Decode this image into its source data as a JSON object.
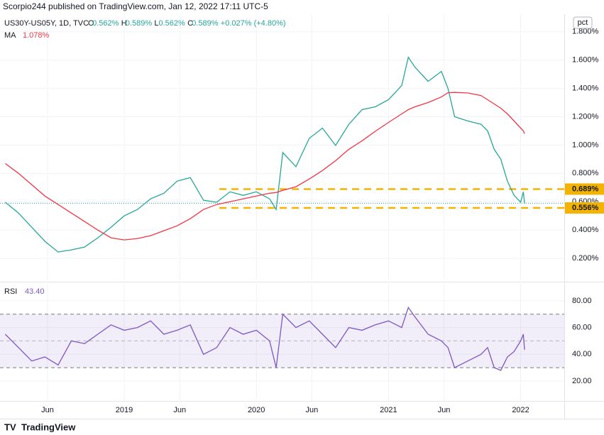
{
  "header": {
    "publisher": "Scorpio244 published on TradingView.com, Jan 12, 2022 17:11 UTC-5"
  },
  "footer": {
    "brand": "TradingView"
  },
  "chart_data": [
    {
      "type": "line",
      "symbol": "US30Y-US05Y, 1D, TVC",
      "ohlc": [
        {
          "key": "O",
          "value": "0.562%"
        },
        {
          "key": "H",
          "value": "0.589%"
        },
        {
          "key": "L",
          "value": "0.562%"
        },
        {
          "key": "C",
          "value": "0.589%"
        }
      ],
      "change": "+0.027% (+4.80%)",
      "axis_unit": "pct",
      "x": [
        2018.1,
        2018.2,
        2018.3,
        2018.4,
        2018.5,
        2018.6,
        2018.7,
        2018.8,
        2018.9,
        2019.0,
        2019.1,
        2019.2,
        2019.3,
        2019.4,
        2019.5,
        2019.6,
        2019.7,
        2019.8,
        2019.9,
        2020.0,
        2020.1,
        2020.15,
        2020.2,
        2020.3,
        2020.4,
        2020.5,
        2020.6,
        2020.7,
        2020.8,
        2020.9,
        2021.0,
        2021.1,
        2021.15,
        2021.2,
        2021.3,
        2021.4,
        2021.45,
        2021.5,
        2021.6,
        2021.7,
        2021.75,
        2021.8,
        2021.85,
        2021.9,
        2021.95,
        2022.0,
        2022.02,
        2022.03
      ],
      "series": [
        {
          "color": "#26a69a",
          "values": [
            0.596,
            0.52,
            0.42,
            0.32,
            0.245,
            0.26,
            0.28,
            0.345,
            0.42,
            0.5,
            0.545,
            0.62,
            0.66,
            0.745,
            0.77,
            0.61,
            0.596,
            0.67,
            0.645,
            0.67,
            0.62,
            0.545,
            0.947,
            0.847,
            1.047,
            1.12,
            0.997,
            1.147,
            1.25,
            1.27,
            1.32,
            1.42,
            1.62,
            1.55,
            1.45,
            1.52,
            1.4,
            1.2,
            1.17,
            1.147,
            1.1,
            0.97,
            0.9,
            0.745,
            0.645,
            0.596,
            0.67,
            0.589
          ]
        },
        {
          "name": "MA",
          "color": "#f23645",
          "value_label": "1.078%",
          "values": [
            0.87,
            0.8,
            0.72,
            0.64,
            0.58,
            0.52,
            0.46,
            0.4,
            0.345,
            0.33,
            0.34,
            0.36,
            0.395,
            0.43,
            0.48,
            0.545,
            0.58,
            0.6,
            0.62,
            0.64,
            0.66,
            0.665,
            0.68,
            0.706,
            0.76,
            0.82,
            0.89,
            0.97,
            1.03,
            1.097,
            1.16,
            1.22,
            1.25,
            1.27,
            1.3,
            1.34,
            1.37,
            1.372,
            1.368,
            1.35,
            1.32,
            1.29,
            1.26,
            1.22,
            1.17,
            1.12,
            1.1,
            1.08
          ]
        }
      ],
      "current_color": "#26a69a",
      "levels": [
        {
          "value": 0.689,
          "label": "0.689%"
        },
        {
          "value": 0.556,
          "label": "0.556%"
        }
      ],
      "level_color": "#f5b301",
      "level_x_start": 2019.72,
      "xlim": [
        2018.06,
        2022.33
      ],
      "xticks": [
        {
          "value": 2018.42,
          "label": "Jun"
        },
        {
          "value": 2019.0,
          "label": "2019"
        },
        {
          "value": 2019.42,
          "label": "Jun"
        },
        {
          "value": 2020.0,
          "label": "2020"
        },
        {
          "value": 2020.42,
          "label": "Jun"
        },
        {
          "value": 2021.0,
          "label": "2021"
        },
        {
          "value": 2021.42,
          "label": "Jun"
        },
        {
          "value": 2022.0,
          "label": "2022"
        }
      ],
      "ylim": [
        0.045,
        1.924
      ],
      "yticks": [
        {
          "value": 0.2,
          "label": "0.200%"
        },
        {
          "value": 0.4,
          "label": "0.400%"
        },
        {
          "value": 0.6,
          "label": "0.600%"
        },
        {
          "value": 0.8,
          "label": "0.800%"
        },
        {
          "value": 1.0,
          "label": "1.000%"
        },
        {
          "value": 1.2,
          "label": "1.200%"
        },
        {
          "value": 1.4,
          "label": "1.400%"
        },
        {
          "value": 1.6,
          "label": "1.600%"
        },
        {
          "value": 1.8,
          "label": "1.800%"
        }
      ],
      "grid": true
    },
    {
      "type": "line",
      "series": [
        {
          "name": "RSI",
          "color": "#7e57c2",
          "value_label": "43.40",
          "values": [
            55,
            45,
            35,
            38,
            32,
            50,
            48,
            55,
            62,
            58,
            60,
            65,
            55,
            58,
            62,
            40,
            45,
            60,
            55,
            58,
            50,
            30,
            70,
            60,
            65,
            55,
            45,
            60,
            58,
            62,
            65,
            60,
            75,
            68,
            55,
            50,
            45,
            30,
            35,
            40,
            45,
            30,
            28,
            38,
            42,
            50,
            55,
            43.4
          ]
        }
      ],
      "band": [
        30,
        70
      ],
      "mid": 50,
      "ylim": [
        5.1,
        92.7
      ],
      "yticks": [
        {
          "value": 20,
          "label": "20.00"
        },
        {
          "value": 40,
          "label": "40.00"
        },
        {
          "value": 60,
          "label": "60.00"
        },
        {
          "value": 80,
          "label": "80.00"
        }
      ],
      "grid": true
    }
  ]
}
